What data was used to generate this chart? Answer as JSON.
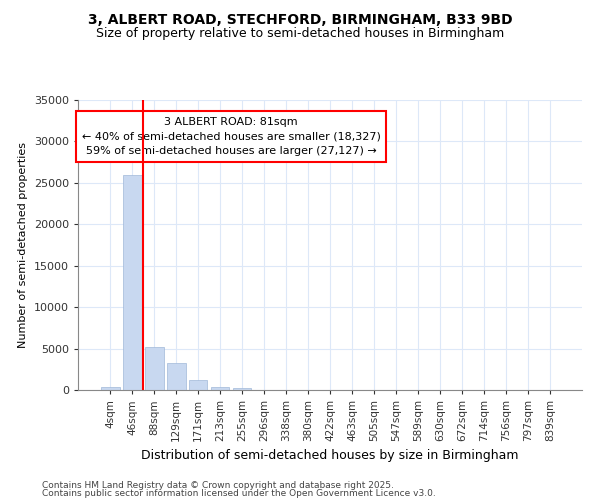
{
  "title1": "3, ALBERT ROAD, STECHFORD, BIRMINGHAM, B33 9BD",
  "title2": "Size of property relative to semi-detached houses in Birmingham",
  "xlabel": "Distribution of semi-detached houses by size in Birmingham",
  "ylabel": "Number of semi-detached properties",
  "categories": [
    "4sqm",
    "46sqm",
    "88sqm",
    "129sqm",
    "171sqm",
    "213sqm",
    "255sqm",
    "296sqm",
    "338sqm",
    "380sqm",
    "422sqm",
    "463sqm",
    "505sqm",
    "547sqm",
    "589sqm",
    "630sqm",
    "672sqm",
    "714sqm",
    "756sqm",
    "797sqm",
    "839sqm"
  ],
  "values": [
    400,
    26000,
    5200,
    3200,
    1200,
    400,
    200,
    0,
    0,
    0,
    0,
    0,
    0,
    0,
    0,
    0,
    0,
    0,
    0,
    0,
    0
  ],
  "bar_color": "#c8d8f0",
  "bar_edge_color": "#a0b8d8",
  "red_line_x": 1.5,
  "annotation_title": "3 ALBERT ROAD: 81sqm",
  "annotation_line1": "← 40% of semi-detached houses are smaller (18,327)",
  "annotation_line2": "59% of semi-detached houses are larger (27,127) →",
  "ylim": [
    0,
    35000
  ],
  "yticks": [
    0,
    5000,
    10000,
    15000,
    20000,
    25000,
    30000,
    35000
  ],
  "footer1": "Contains HM Land Registry data © Crown copyright and database right 2025.",
  "footer2": "Contains public sector information licensed under the Open Government Licence v3.0.",
  "bg_color": "#ffffff",
  "grid_color": "#dde8f8"
}
